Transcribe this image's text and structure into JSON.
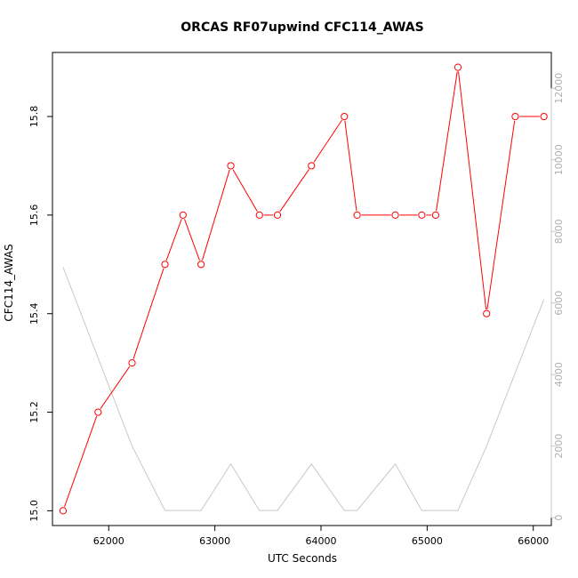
{
  "chart_data": {
    "type": "line",
    "title": "ORCAS RF07upwind CFC114_AWAS",
    "xlabel": "UTC Seconds",
    "ylabel": "CFC114_AWAS",
    "xlim": [
      61470,
      66170
    ],
    "ylim": [
      14.97,
      15.93
    ],
    "y2lim": [
      -220,
      13000
    ],
    "x_ticks": [
      62000,
      63000,
      64000,
      65000,
      66000
    ],
    "y_ticks": [
      15.0,
      15.2,
      15.4,
      15.6,
      15.8
    ],
    "y2_ticks": [
      0,
      2000,
      4000,
      6000,
      8000,
      10000,
      12000
    ],
    "grid": false,
    "legend": "none",
    "series": [
      {
        "color": "#ff0000",
        "marker": "open-circle",
        "axis": "left",
        "x": [
          61570,
          61900,
          62220,
          62530,
          62700,
          62870,
          63150,
          63420,
          63590,
          63910,
          64220,
          64340,
          64700,
          64950,
          65080,
          65290,
          65560,
          65830,
          66100
        ],
        "y": [
          15.0,
          15.2,
          15.3,
          15.5,
          15.6,
          15.5,
          15.7,
          15.6,
          15.6,
          15.7,
          15.8,
          15.6,
          15.6,
          15.6,
          15.6,
          15.9,
          15.4,
          15.8,
          15.8
        ]
      },
      {
        "color": "#c8c8c8",
        "marker": "none",
        "axis": "right",
        "x": [
          61570,
          62220,
          62530,
          62870,
          63150,
          63420,
          63590,
          63910,
          64220,
          64340,
          64700,
          64950,
          65290,
          65560,
          66100
        ],
        "y": [
          7000,
          2000,
          200,
          200,
          1500,
          200,
          200,
          1500,
          200,
          200,
          1500,
          200,
          200,
          2000,
          6100
        ]
      }
    ]
  }
}
